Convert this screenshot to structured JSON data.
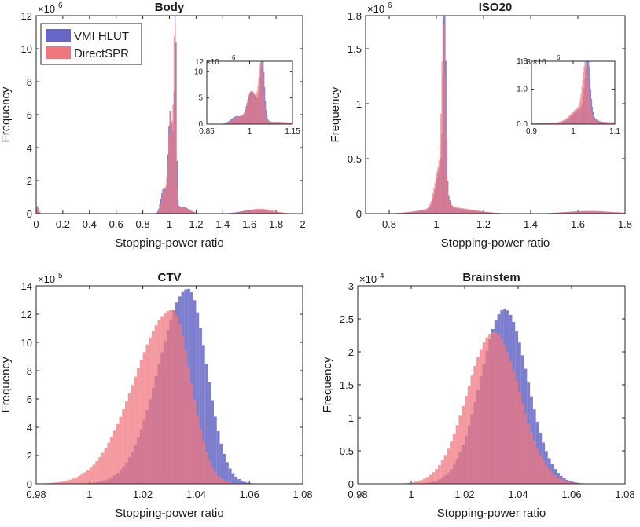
{
  "figure": {
    "colors": {
      "vmi": "#6667c6",
      "direct": "#f0777f",
      "axis": "#262626"
    },
    "legend": [
      "VMI HLUT",
      "DirectSPR"
    ]
  },
  "chart_data": [
    {
      "id": "body",
      "type": "bar",
      "title": "Body",
      "xlabel": "Stopping-power ratio",
      "ylabel": "Frequency",
      "exponent_label": "×10",
      "exponent_power": "6",
      "xlim": [
        0,
        2
      ],
      "ylim": [
        0,
        12
      ],
      "xticks": [
        "0",
        "0.2",
        "0.4",
        "0.6",
        "0.8",
        "1",
        "1.2",
        "1.4",
        "1.6",
        "1.8",
        "2"
      ],
      "xtick_values": [
        0,
        0.2,
        0.4,
        0.6,
        0.8,
        1,
        1.2,
        1.4,
        1.6,
        1.8,
        2
      ],
      "yticks": [
        "0",
        "2",
        "4",
        "6",
        "8",
        "10",
        "12"
      ],
      "ytick_values": [
        0,
        2,
        4,
        6,
        8,
        10,
        12
      ],
      "legend": [
        "VMI HLUT",
        "DirectSPR"
      ],
      "legend_position": "top-left",
      "series": [
        {
          "name": "VMI HLUT",
          "peaks": [
            [
              0.01,
              0.4,
              0.01
            ],
            [
              0.955,
              1.5,
              0.02
            ],
            [
              1.0,
              3.0,
              0.012
            ],
            [
              1.045,
              11.2,
              0.007
            ],
            [
              1.02,
              4.5,
              0.02
            ],
            [
              1.1,
              0.4,
              0.05
            ],
            [
              1.65,
              0.25,
              0.1
            ]
          ]
        },
        {
          "name": "DirectSPR",
          "peaks": [
            [
              0.01,
              0.5,
              0.01
            ],
            [
              0.96,
              1.4,
              0.02
            ],
            [
              1.005,
              2.5,
              0.012
            ],
            [
              1.04,
              10.0,
              0.008
            ],
            [
              1.015,
              4.0,
              0.02
            ],
            [
              1.1,
              0.4,
              0.05
            ],
            [
              1.68,
              0.3,
              0.1
            ]
          ]
        }
      ],
      "inset": {
        "xlim": [
          0.85,
          1.15
        ],
        "ylim": [
          0,
          12
        ],
        "xticks": [
          "0.85",
          "1",
          "1.15"
        ],
        "xtick_values": [
          0.85,
          1,
          1.15
        ],
        "yticks": [
          "0",
          "5",
          "10"
        ],
        "ytick_values": [
          0,
          5,
          10
        ],
        "exponent_label": "12 ×10",
        "exponent_power": "6"
      }
    },
    {
      "id": "iso20",
      "type": "bar",
      "title": "ISO20",
      "xlabel": "Stopping-power ratio",
      "ylabel": "Frequency",
      "exponent_label": "×10",
      "exponent_power": "6",
      "xlim": [
        0.7,
        1.8
      ],
      "ylim": [
        0,
        1.8
      ],
      "xticks": [
        "0.8",
        "1",
        "1.2",
        "1.4",
        "1.6",
        "1.8"
      ],
      "xtick_values": [
        0.8,
        1,
        1.2,
        1.4,
        1.6,
        1.8
      ],
      "yticks": [
        "0",
        "0.5",
        "1",
        "1.5",
        "1.8"
      ],
      "ytick_values": [
        0,
        0.5,
        1,
        1.5,
        1.8
      ],
      "series": [
        {
          "name": "VMI HLUT",
          "peaks": [
            [
              1.035,
              1.7,
              0.006
            ],
            [
              1.02,
              0.4,
              0.02
            ],
            [
              1.05,
              0.05,
              0.1
            ],
            [
              1.65,
              0.02,
              0.1
            ]
          ]
        },
        {
          "name": "DirectSPR",
          "peaks": [
            [
              1.03,
              1.45,
              0.007
            ],
            [
              1.015,
              0.4,
              0.02
            ],
            [
              1.05,
              0.06,
              0.1
            ],
            [
              1.65,
              0.025,
              0.1
            ]
          ]
        }
      ],
      "inset": {
        "xlim": [
          0.9,
          1.1
        ],
        "ylim": [
          0,
          1.8
        ],
        "xticks": [
          "0.9",
          "1",
          "1.1"
        ],
        "xtick_values": [
          0.9,
          1,
          1.1
        ],
        "yticks": [
          "0.0",
          "1.0",
          "1.8"
        ],
        "ytick_values": [
          0,
          1,
          1.8
        ],
        "exponent_label": "1.8 ×10",
        "exponent_power": "6"
      }
    },
    {
      "id": "ctv",
      "type": "bar",
      "title": "CTV",
      "xlabel": "Stopping-power ratio",
      "ylabel": "Frequency",
      "exponent_label": "×10",
      "exponent_power": "5",
      "xlim": [
        0.98,
        1.08
      ],
      "ylim": [
        0,
        14
      ],
      "xticks": [
        "0.98",
        "1",
        "1.02",
        "1.04",
        "1.06",
        "1.08"
      ],
      "xtick_values": [
        0.98,
        1,
        1.02,
        1.04,
        1.06,
        1.08
      ],
      "yticks": [
        "0",
        "2",
        "4",
        "6",
        "8",
        "10",
        "12",
        "14"
      ],
      "ytick_values": [
        0,
        2,
        4,
        6,
        8,
        10,
        12,
        14
      ],
      "series": [
        {
          "name": "VMI HLUT",
          "peak_x": 1.037,
          "peak_y": 13.8,
          "sigma_left": 0.011,
          "sigma_right": 0.007
        },
        {
          "name": "DirectSPR",
          "peak_x": 1.031,
          "peak_y": 12.3,
          "sigma_left": 0.014,
          "sigma_right": 0.007
        }
      ]
    },
    {
      "id": "brainstem",
      "type": "bar",
      "title": "Brainstem",
      "xlabel": "Stopping-power ratio",
      "ylabel": "Frequency",
      "exponent_label": "×10",
      "exponent_power": "4",
      "xlim": [
        0.98,
        1.08
      ],
      "ylim": [
        0,
        3
      ],
      "xticks": [
        "0.98",
        "1",
        "1.02",
        "1.04",
        "1.06",
        "1.08"
      ],
      "xtick_values": [
        0.98,
        1,
        1.02,
        1.04,
        1.06,
        1.08
      ],
      "yticks": [
        "0",
        "0.5",
        "1",
        "1.5",
        "2",
        "2.5",
        "3"
      ],
      "ytick_values": [
        0,
        0.5,
        1,
        1.5,
        2,
        2.5,
        3
      ],
      "series": [
        {
          "name": "VMI HLUT",
          "peak_x": 1.035,
          "peak_y": 2.65,
          "sigma_left": 0.009,
          "sigma_right": 0.0085
        },
        {
          "name": "DirectSPR",
          "peak_x": 1.031,
          "peak_y": 2.3,
          "sigma_left": 0.01,
          "sigma_right": 0.0095
        }
      ]
    }
  ]
}
